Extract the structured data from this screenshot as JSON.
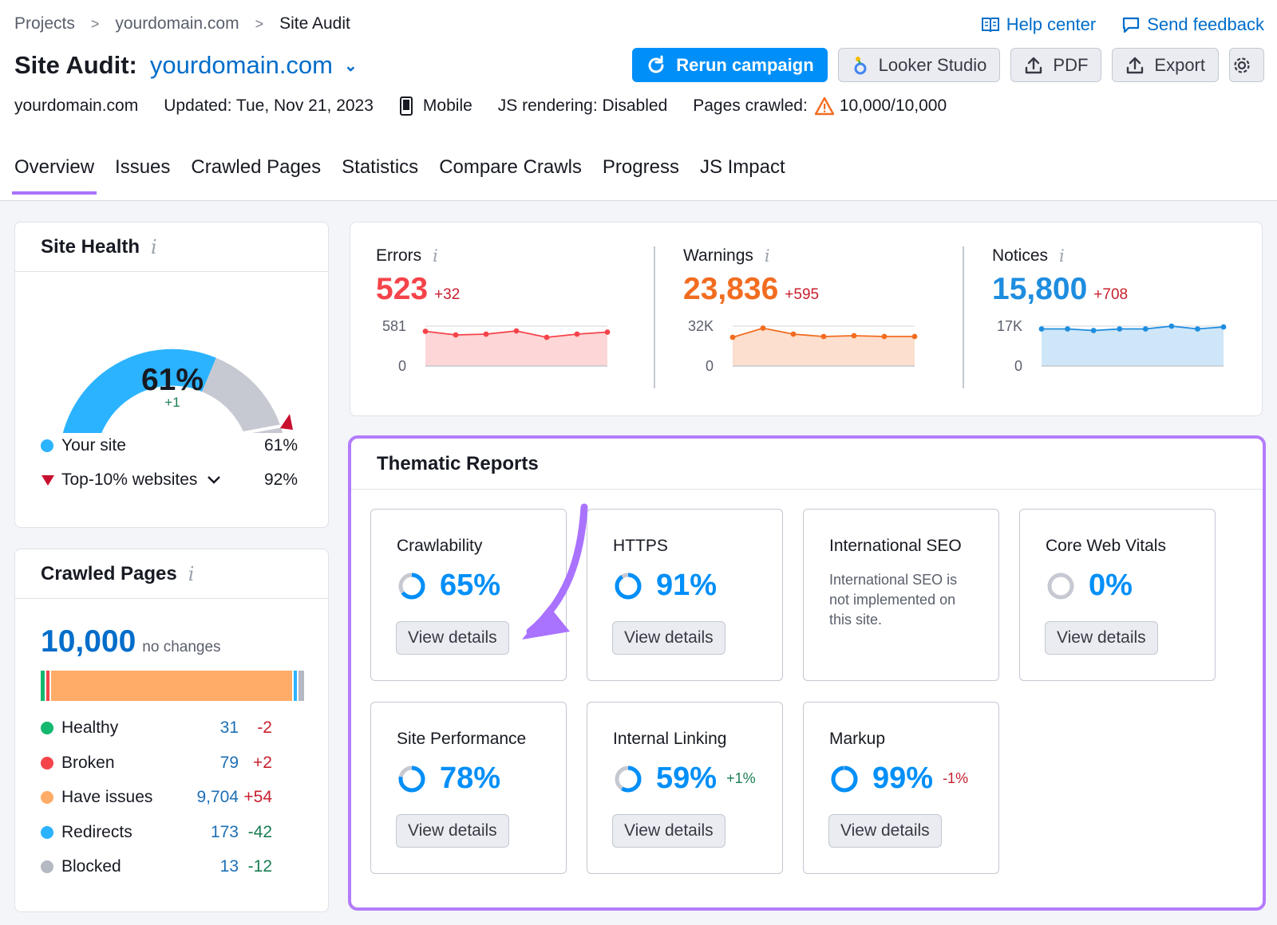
{
  "breadcrumbs": [
    "Projects",
    "yourdomain.com",
    "Site Audit"
  ],
  "header": {
    "title": "Site Audit:",
    "domain": "yourdomain.com",
    "site": "yourdomain.com",
    "updated": "Updated: Tue, Nov 21, 2023",
    "device": "Mobile",
    "js_rendering": "JS rendering: Disabled",
    "pages_crawled_label": "Pages crawled:",
    "pages_crawled_value": "10,000/10,000"
  },
  "top_links": {
    "help": "Help center",
    "feedback": "Send feedback"
  },
  "actions": {
    "rerun": "Rerun campaign",
    "looker": "Looker Studio",
    "pdf": "PDF",
    "export": "Export"
  },
  "tabs": [
    "Overview",
    "Issues",
    "Crawled Pages",
    "Statistics",
    "Compare Crawls",
    "Progress",
    "JS Impact"
  ],
  "site_health": {
    "title": "Site Health",
    "value": "61%",
    "delta": "+1",
    "legend": [
      {
        "label": "Your site",
        "value": "61%",
        "color": "#2bb3ff"
      },
      {
        "label": "Top-10% websites",
        "value": "92%",
        "color": "#c8102e"
      }
    ]
  },
  "crawled_pages": {
    "title": "Crawled Pages",
    "total": "10,000",
    "note": "no changes",
    "rows": [
      {
        "label": "Healthy",
        "value": "31",
        "delta": "-2",
        "color": "#14b86f",
        "delta_color": "#c8202d"
      },
      {
        "label": "Broken",
        "value": "79",
        "delta": "+2",
        "color": "#f5434a",
        "delta_color": "#c8202d"
      },
      {
        "label": "Have issues",
        "value": "9,704",
        "delta": "+54",
        "color": "#ffac68",
        "delta_color": "#c8202d"
      },
      {
        "label": "Redirects",
        "value": "173",
        "delta": "-42",
        "color": "#2bb3ff",
        "delta_color": "#1a7d52"
      },
      {
        "label": "Blocked",
        "value": "13",
        "delta": "-12",
        "color": "#b5b9c3",
        "delta_color": "#1a7d52"
      }
    ]
  },
  "metrics": [
    {
      "label": "Errors",
      "value": "523",
      "delta": "+32",
      "color": "#f5434a",
      "ymax": "581",
      "ymin": "0",
      "trend": [
        0.87,
        0.78,
        0.8,
        0.88,
        0.72,
        0.8,
        0.85
      ]
    },
    {
      "label": "Warnings",
      "value": "23,836",
      "delta": "+595",
      "color": "#f26c20",
      "ymax": "32K",
      "ymin": "0",
      "trend": [
        0.72,
        0.95,
        0.8,
        0.74,
        0.76,
        0.74,
        0.74
      ]
    },
    {
      "label": "Notices",
      "value": "15,800",
      "delta": "+708",
      "color": "#1e8ddf",
      "ymax": "17K",
      "ymin": "0",
      "trend": [
        0.93,
        0.93,
        0.89,
        0.93,
        0.93,
        1.0,
        0.93,
        0.98
      ]
    }
  ],
  "thematic": {
    "title": "Thematic Reports",
    "view_label": "View details",
    "cards": [
      {
        "name": "Crawlability",
        "pct": "65%",
        "fill": 0.65
      },
      {
        "name": "HTTPS",
        "pct": "91%",
        "fill": 0.91
      },
      {
        "name": "International SEO",
        "message": "International SEO is not implemented on this site."
      },
      {
        "name": "Core Web Vitals",
        "pct": "0%",
        "fill": 0
      },
      {
        "name": "Site Performance",
        "pct": "78%",
        "fill": 0.78
      },
      {
        "name": "Internal Linking",
        "pct": "59%",
        "fill": 0.59,
        "delta": "+1%",
        "delta_color": "#1a7d52"
      },
      {
        "name": "Markup",
        "pct": "99%",
        "fill": 0.99,
        "delta": "-1%",
        "delta_color": "#c8202d"
      }
    ]
  }
}
